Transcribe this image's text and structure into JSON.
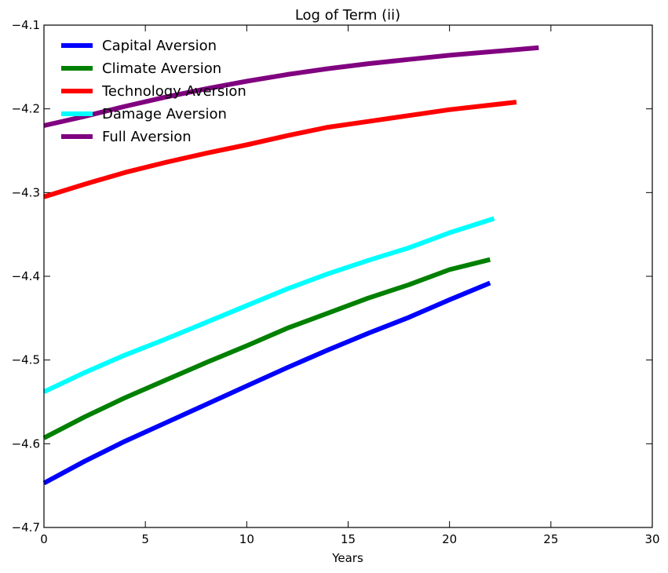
{
  "chart_data": {
    "type": "line",
    "title": "Log of Term (ii)",
    "xlabel": "Years",
    "ylabel": "",
    "xlim": [
      0,
      30
    ],
    "ylim": [
      -4.7,
      -4.1
    ],
    "xticks": [
      0,
      5,
      10,
      15,
      20,
      25,
      30
    ],
    "yticks": [
      -4.7,
      -4.6,
      -4.5,
      -4.4,
      -4.3,
      -4.2,
      -4.1
    ],
    "xtick_labels": [
      "0",
      "5",
      "10",
      "15",
      "20",
      "25",
      "30"
    ],
    "ytick_labels": [
      "−4.7",
      "−4.6",
      "−4.5",
      "−4.4",
      "−4.3",
      "−4.2",
      "−4.1"
    ],
    "grid": false,
    "legend_position": "top-left",
    "series": [
      {
        "name": "Capital Aversion",
        "color": "#0000ff",
        "x": [
          0,
          2,
          4,
          6,
          8,
          10,
          12,
          14,
          16,
          18,
          20,
          22
        ],
        "y": [
          -4.647,
          -4.621,
          -4.597,
          -4.575,
          -4.553,
          -4.531,
          -4.509,
          -4.488,
          -4.468,
          -4.449,
          -4.428,
          -4.408
        ]
      },
      {
        "name": "Climate Aversion",
        "color": "#008000",
        "x": [
          0,
          2,
          4,
          6,
          8,
          10,
          12,
          14,
          16,
          18,
          20,
          22
        ],
        "y": [
          -4.593,
          -4.568,
          -4.545,
          -4.524,
          -4.503,
          -4.483,
          -4.462,
          -4.444,
          -4.426,
          -4.41,
          -4.392,
          -4.38
        ]
      },
      {
        "name": "Technology Aversion",
        "color": "#ff0000",
        "x": [
          0,
          2,
          4,
          6,
          8,
          10,
          12,
          14,
          16,
          18,
          20,
          23.3
        ],
        "y": [
          -4.305,
          -4.29,
          -4.276,
          -4.264,
          -4.253,
          -4.243,
          -4.232,
          -4.222,
          -4.215,
          -4.208,
          -4.201,
          -4.192
        ]
      },
      {
        "name": "Damage Aversion",
        "color": "#00ffff",
        "x": [
          0,
          2,
          4,
          6,
          8,
          10,
          12,
          14,
          16,
          18,
          20,
          22.2
        ],
        "y": [
          -4.538,
          -4.515,
          -4.494,
          -4.475,
          -4.455,
          -4.435,
          -4.415,
          -4.397,
          -4.381,
          -4.366,
          -4.348,
          -4.331
        ]
      },
      {
        "name": "Full Aversion",
        "color": "#800080",
        "x": [
          0,
          2,
          4,
          6,
          8,
          10,
          12,
          14,
          16,
          18,
          20,
          24.4
        ],
        "y": [
          -4.22,
          -4.209,
          -4.197,
          -4.186,
          -4.176,
          -4.167,
          -4.159,
          -4.152,
          -4.146,
          -4.141,
          -4.136,
          -4.127
        ]
      }
    ]
  }
}
